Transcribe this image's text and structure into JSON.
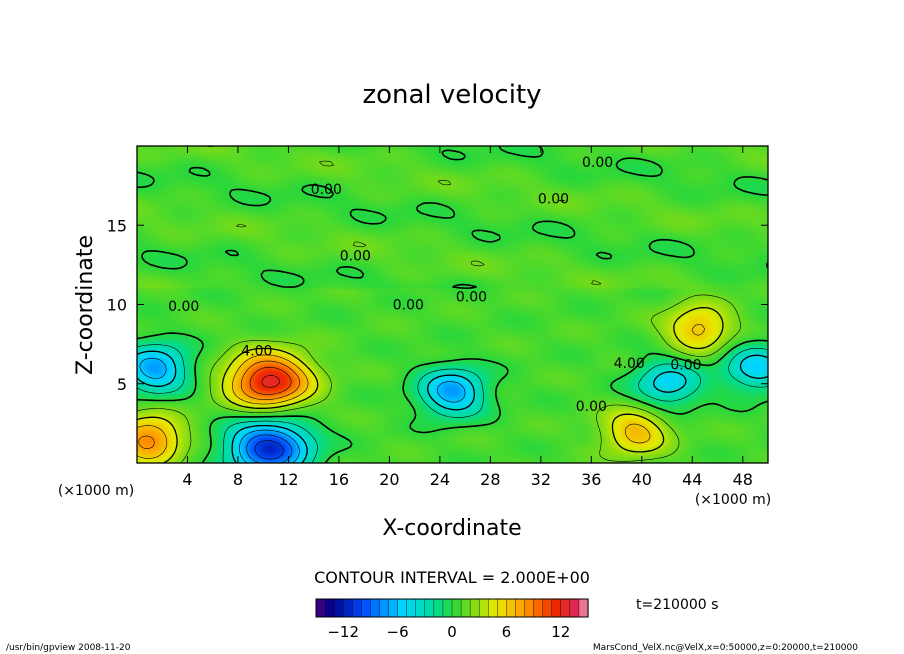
{
  "chart_data": {
    "type": "heatmap",
    "title": "zonal velocity",
    "xlabel": "X-coordinate",
    "ylabel": "Z-coordinate",
    "x_unit_label": "(×1000 m)",
    "y_unit_label": "(×1000 m)",
    "xlim": [
      0,
      50
    ],
    "ylim": [
      0,
      20
    ],
    "x_ticks": [
      "4",
      "8",
      "12",
      "16",
      "20",
      "24",
      "28",
      "32",
      "36",
      "40",
      "44",
      "48"
    ],
    "y_ticks": [
      "5",
      "10",
      "15"
    ],
    "contour_interval_text": "CONTOUR INTERVAL = 2.000E+00",
    "time_text": "t=210000 s",
    "colorbar": {
      "min": -15,
      "max": 15,
      "ticks": [
        "−12",
        "−6",
        "0",
        "6",
        "12"
      ],
      "tick_values": [
        -12,
        -6,
        0,
        6,
        12
      ]
    },
    "contour_labels": [
      {
        "text": "0.00",
        "x": 36.5,
        "y": 19.0
      },
      {
        "text": "0.00",
        "x": 15.0,
        "y": 17.3
      },
      {
        "text": "0.00",
        "x": 33.0,
        "y": 16.7
      },
      {
        "text": "0.00",
        "x": 17.3,
        "y": 13.1
      },
      {
        "text": "0.00",
        "x": 3.7,
        "y": 9.9
      },
      {
        "text": "0.00",
        "x": 21.5,
        "y": 10.0
      },
      {
        "text": "0.00",
        "x": 26.5,
        "y": 10.5
      },
      {
        "text": "4.00",
        "x": 9.5,
        "y": 7.1
      },
      {
        "text": "4.00",
        "x": 39.0,
        "y": 6.3
      },
      {
        "text": "0.00",
        "x": 43.5,
        "y": 6.2
      },
      {
        "text": "0.00",
        "x": 36.0,
        "y": 3.6
      }
    ],
    "features": [
      {
        "name": "positive jet core",
        "x": 10.5,
        "z": 5.2,
        "u": 12
      },
      {
        "name": "positive patch",
        "x": 44.5,
        "z": 8.5,
        "u": 6
      },
      {
        "name": "positive corner",
        "x": 1.0,
        "z": 1.5,
        "u": 8
      },
      {
        "name": "positive patch",
        "x": 39.5,
        "z": 2.0,
        "u": 6
      },
      {
        "name": "negative cell",
        "x": 10.5,
        "z": 1.0,
        "u": -12
      },
      {
        "name": "negative cell",
        "x": 1.5,
        "z": 6.0,
        "u": -8
      },
      {
        "name": "negative cell",
        "x": 25.0,
        "z": 4.5,
        "u": -8
      },
      {
        "name": "negative cell",
        "x": 42.0,
        "z": 5.0,
        "u": -6
      },
      {
        "name": "negative cell",
        "x": 49.0,
        "z": 6.0,
        "u": -6
      }
    ]
  },
  "footer": {
    "left": "/usr/bin/gpview   2008-11-20",
    "right": "MarsCond_VelX.nc@VelX,x=0:50000,z=0:20000,t=210000"
  }
}
